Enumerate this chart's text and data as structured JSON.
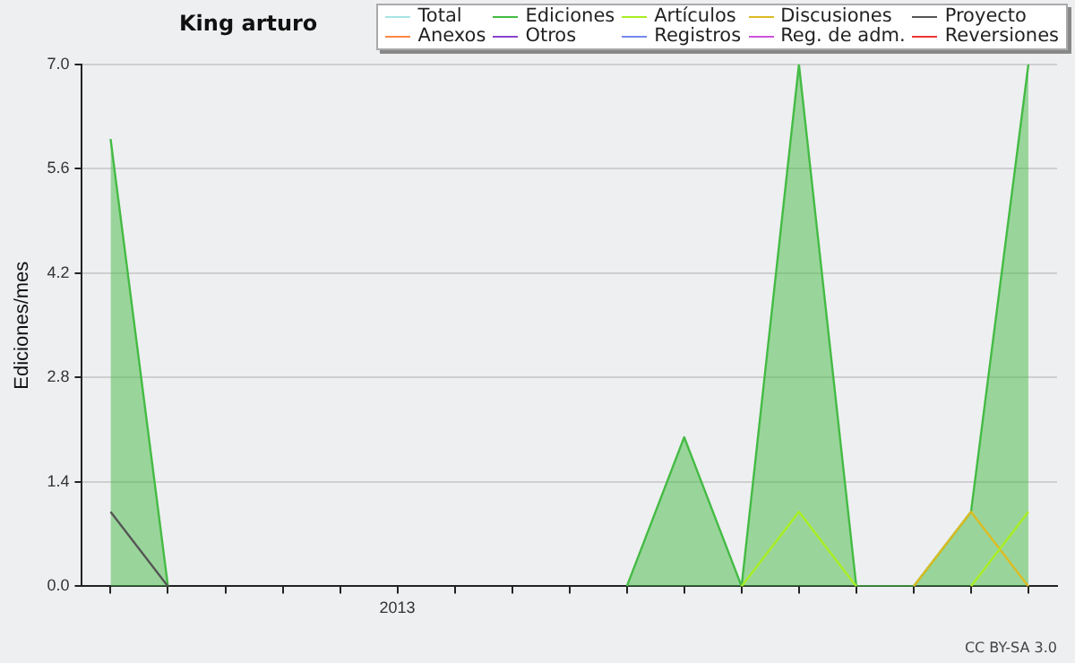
{
  "chart_data": {
    "type": "line",
    "title": "King arturo",
    "ylabel": "Ediciones/mes",
    "categories": [
      null,
      null,
      null,
      null,
      null,
      "2013",
      null,
      null,
      null,
      null,
      null,
      null,
      null,
      null,
      null,
      null,
      null
    ],
    "series": [
      {
        "name": "Total",
        "color": "#a8e4e4",
        "values": [
          null,
          null,
          null,
          null,
          null,
          null,
          null,
          null,
          null,
          null,
          null,
          null,
          null,
          null,
          null,
          null,
          null
        ]
      },
      {
        "name": "Ediciones",
        "type": "area",
        "color": "#44bb44",
        "values": [
          6,
          0,
          null,
          null,
          null,
          null,
          null,
          null,
          null,
          0,
          2,
          0,
          7,
          0,
          0,
          1,
          7
        ]
      },
      {
        "name": "Artículos",
        "color": "#aaee22",
        "values": [
          null,
          null,
          null,
          null,
          null,
          null,
          null,
          null,
          null,
          null,
          null,
          0,
          1,
          0,
          null,
          0,
          1
        ]
      },
      {
        "name": "Discusiones",
        "color": "#ddbb22",
        "values": [
          null,
          null,
          null,
          null,
          null,
          null,
          null,
          null,
          null,
          null,
          null,
          null,
          null,
          null,
          0,
          1,
          0
        ]
      },
      {
        "name": "Proyecto",
        "color": "#555555",
        "values": [
          1,
          0,
          null,
          null,
          null,
          null,
          null,
          null,
          null,
          null,
          null,
          null,
          null,
          null,
          null,
          null,
          null
        ]
      },
      {
        "name": "Anexos",
        "color": "#ff8844",
        "values": [
          null,
          null,
          null,
          null,
          null,
          null,
          null,
          null,
          null,
          null,
          null,
          null,
          null,
          null,
          null,
          null,
          null
        ]
      },
      {
        "name": "Otros",
        "color": "#8844cc",
        "values": [
          null,
          null,
          null,
          null,
          null,
          null,
          null,
          null,
          null,
          null,
          null,
          null,
          null,
          null,
          null,
          null,
          null
        ]
      },
      {
        "name": "Registros",
        "color": "#7788ee",
        "values": [
          null,
          null,
          null,
          null,
          null,
          null,
          null,
          null,
          null,
          null,
          null,
          null,
          null,
          null,
          null,
          null,
          null
        ]
      },
      {
        "name": "Reg. de adm.",
        "color": "#cc55dd",
        "values": [
          null,
          null,
          null,
          null,
          null,
          null,
          null,
          null,
          null,
          null,
          null,
          null,
          null,
          null,
          null,
          null,
          null
        ]
      },
      {
        "name": "Reversiones",
        "color": "#ee3333",
        "values": [
          null,
          null,
          null,
          null,
          null,
          null,
          null,
          null,
          null,
          null,
          null,
          null,
          null,
          null,
          null,
          null,
          null
        ]
      }
    ],
    "ylim": [
      0,
      7
    ],
    "yticks": [
      {
        "value": 0,
        "label": "0.0"
      },
      {
        "value": 1.4,
        "label": "1.4"
      },
      {
        "value": 2.8,
        "label": "2.8"
      },
      {
        "value": 4.2,
        "label": "4.2"
      },
      {
        "value": 5.6,
        "label": "5.6"
      },
      {
        "value": 7,
        "label": "7.0"
      }
    ],
    "grid": "y",
    "legend": "top right",
    "marker": "none",
    "annotations": [
      "CC BY-SA 3.0"
    ]
  }
}
